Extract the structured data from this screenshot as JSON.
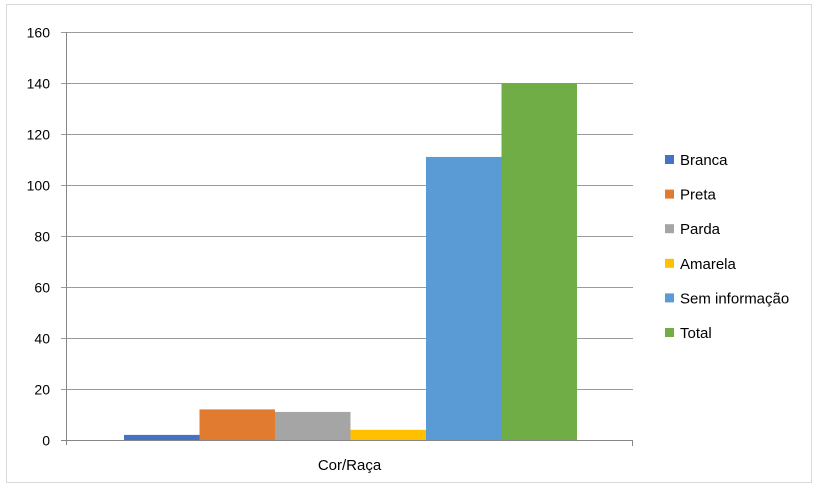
{
  "chart_data": {
    "type": "bar",
    "categories": [
      "Cor/Raça"
    ],
    "series": [
      {
        "name": "Branca",
        "values": [
          2
        ],
        "color": "#4472c4"
      },
      {
        "name": "Preta",
        "values": [
          12
        ],
        "color": "#e07b2f"
      },
      {
        "name": "Parda",
        "values": [
          11
        ],
        "color": "#a5a5a5"
      },
      {
        "name": "Amarela",
        "values": [
          4
        ],
        "color": "#ffc000"
      },
      {
        "name": "Sem informação",
        "values": [
          111
        ],
        "color": "#5b9bd5"
      },
      {
        "name": "Total",
        "values": [
          140
        ],
        "color": "#70ad47"
      }
    ],
    "title": "",
    "xlabel": "",
    "ylabel": "",
    "ylim": [
      0,
      160
    ],
    "yticks": [
      0,
      20,
      40,
      60,
      80,
      100,
      120,
      140,
      160
    ],
    "grid": true,
    "legend_position": "right"
  }
}
